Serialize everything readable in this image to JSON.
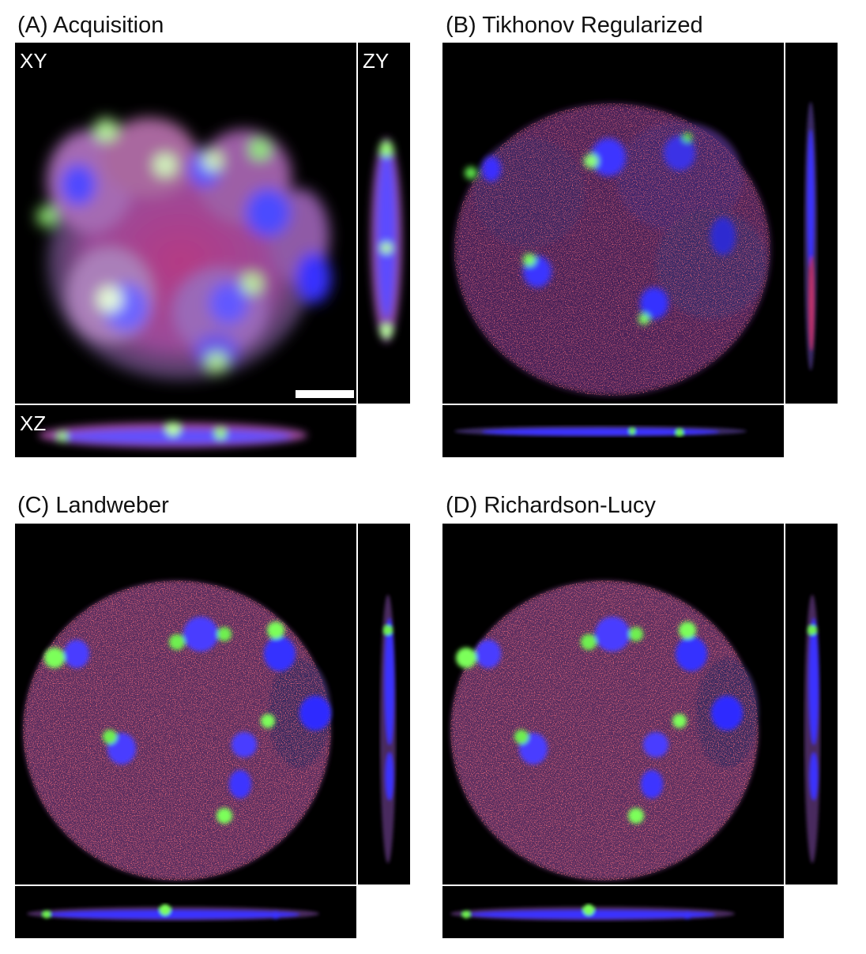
{
  "panels": [
    {
      "id": "A",
      "title": "(A) Acquisition",
      "view_labels": {
        "xy": "XY",
        "zy": "ZY",
        "xz": "XZ"
      },
      "scale_bar": true,
      "style": "blurred"
    },
    {
      "id": "B",
      "title": "(B) Tikhonov Regularized",
      "view_labels": {
        "xy": "",
        "zy": "",
        "xz": ""
      },
      "scale_bar": false,
      "style": "tikhonov"
    },
    {
      "id": "C",
      "title": "(C) Landweber",
      "view_labels": {
        "xy": "",
        "zy": "",
        "xz": ""
      },
      "scale_bar": false,
      "style": "sharp"
    },
    {
      "id": "D",
      "title": "(D) Richardson-Lucy",
      "view_labels": {
        "xy": "",
        "zy": "",
        "xz": ""
      },
      "scale_bar": false,
      "style": "sharp"
    }
  ],
  "colors": {
    "background": "#000000",
    "cytoplasm_stain": "#c2306a",
    "microtubule_stain": "#5cff4a",
    "nucleus_stain": "#3b3cff",
    "separator": "#dddddd"
  }
}
